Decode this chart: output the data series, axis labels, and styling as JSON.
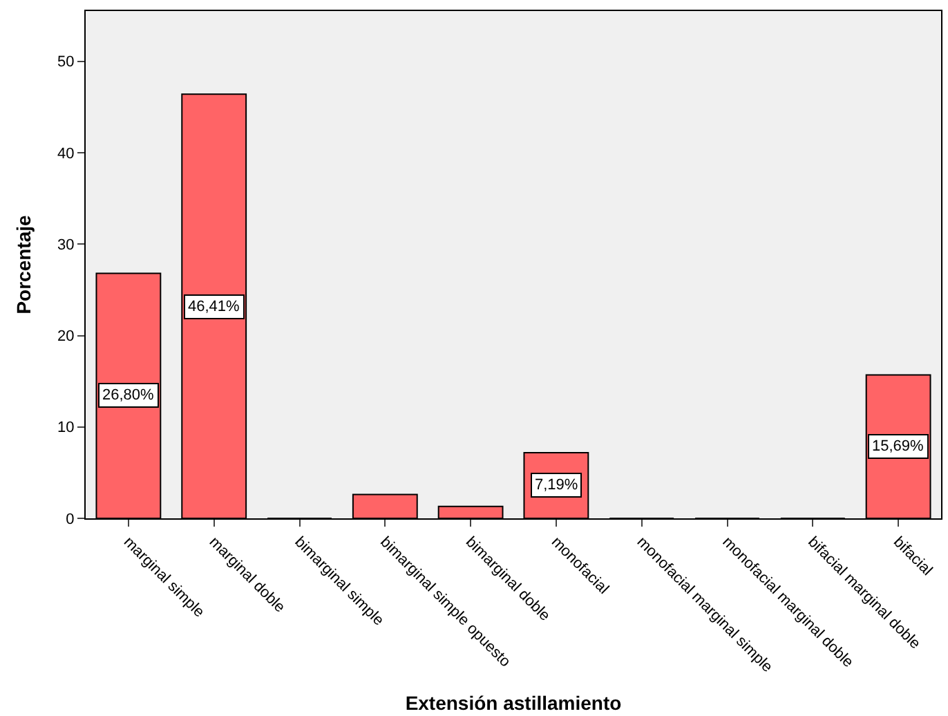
{
  "chart_data": {
    "type": "bar",
    "xlabel": "Extensión astillamiento",
    "ylabel": "Porcentaje",
    "categories": [
      "marginal simple",
      "marginal doble",
      "bimarginal simple",
      "bimarginal simple opuesto",
      "bimarginal doble",
      "monofacial",
      "monofacial marginal simple",
      "monofacial marginal doble",
      "bifacial marginal doble",
      "bifacial"
    ],
    "values": [
      26.8,
      46.41,
      0,
      2.6,
      1.3,
      7.19,
      0,
      0,
      0,
      15.69
    ],
    "value_labels": [
      "26,80%",
      "46,41%",
      null,
      null,
      null,
      "7,19%",
      null,
      null,
      null,
      "15,69%"
    ],
    "color": "#ff6466",
    "ylim": [
      0,
      55.5
    ],
    "yticks": [
      0,
      10,
      20,
      30,
      40,
      50
    ],
    "grid": false,
    "legend": false
  }
}
